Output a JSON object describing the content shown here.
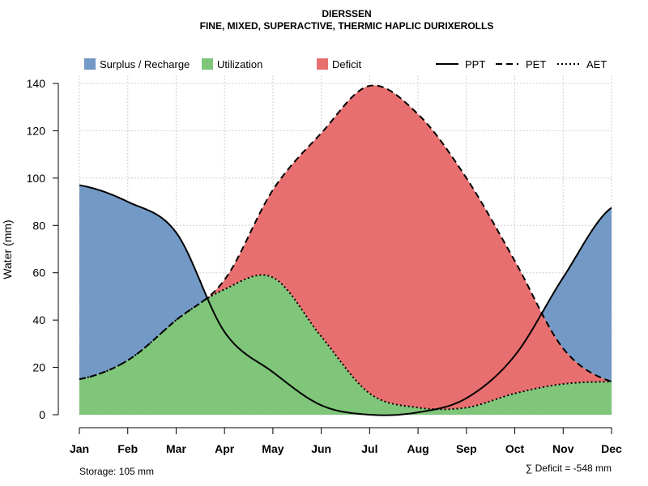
{
  "chart_data": {
    "type": "area",
    "title": "DIERSSEN",
    "subtitle": "FINE, MIXED, SUPERACTIVE, THERMIC HAPLIC DURIXEROLLS",
    "ylabel": "Water (mm)",
    "xlabel": "",
    "ylim": [
      0,
      140
    ],
    "yticks": [
      0,
      20,
      40,
      60,
      80,
      100,
      120,
      140
    ],
    "grid": true,
    "categories": [
      "Jan",
      "Feb",
      "Mar",
      "Apr",
      "May",
      "Jun",
      "Jul",
      "Aug",
      "Sep",
      "Oct",
      "Nov",
      "Dec"
    ],
    "series": [
      {
        "name": "PPT",
        "style": "solid",
        "values": [
          97,
          90,
          77,
          35,
          18,
          4,
          0,
          1,
          7,
          25,
          58,
          87.5
        ]
      },
      {
        "name": "PET",
        "style": "dashed",
        "values": [
          15,
          23,
          40,
          57,
          95,
          119,
          139,
          127,
          100,
          65,
          28,
          14
        ]
      },
      {
        "name": "AET",
        "style": "dotted",
        "values": [
          15,
          23,
          40,
          53,
          58,
          33,
          9,
          3,
          3,
          9,
          13,
          14
        ]
      }
    ],
    "fills": [
      {
        "name": "Surplus / Recharge",
        "color": "#7399C6"
      },
      {
        "name": "Utilization",
        "color": "#7FC57A"
      },
      {
        "name": "Deficit",
        "color": "#E86F6F"
      }
    ],
    "legend_position": "top",
    "annotations": {
      "storage": "Storage: 105 mm",
      "deficit": "∑ Deficit = -548 mm"
    }
  }
}
